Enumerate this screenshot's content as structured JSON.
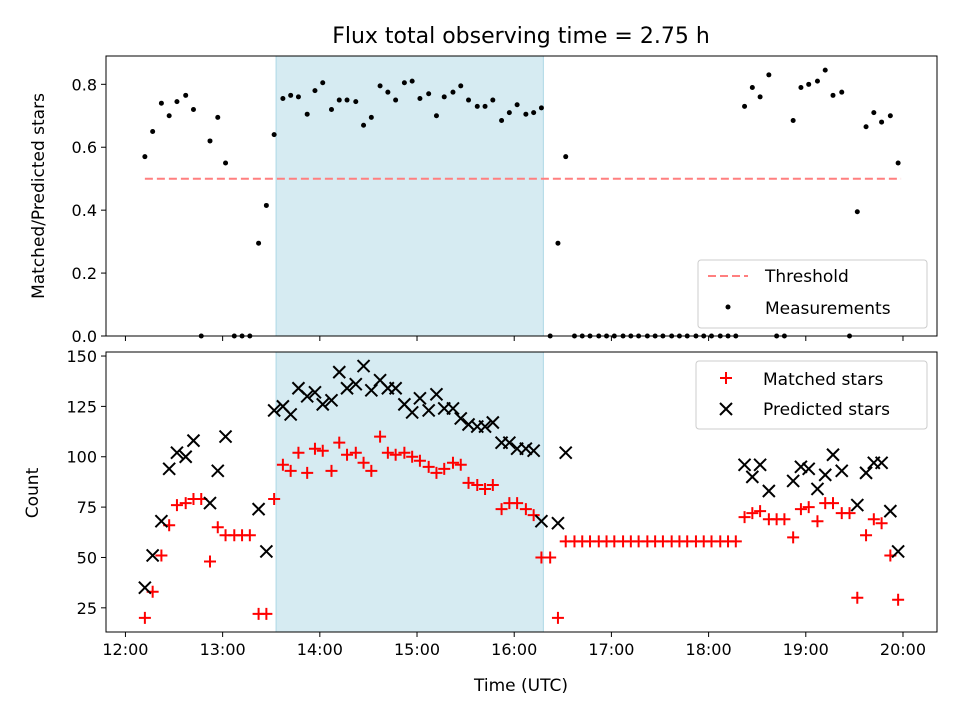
{
  "chart_data": {
    "title": "Flux total observing time = 2.75 h",
    "shared_x": {
      "label": "Time (UTC)",
      "range_hours": [
        11.8,
        20.35
      ],
      "ticks": [
        "12:00",
        "13:00",
        "14:00",
        "15:00",
        "16:00",
        "17:00",
        "18:00",
        "19:00",
        "20:00"
      ]
    },
    "observing_window_hours": [
      13.55,
      16.3
    ],
    "colors": {
      "window_fill": "#add8e6",
      "threshold": "#ff7f7f",
      "measurements": "#000000",
      "matched": "#ff0000",
      "predicted": "#000000"
    },
    "panels": [
      {
        "type": "scatter",
        "ylabel": "Matched/Predicted stars",
        "ylim": [
          0,
          0.89
        ],
        "yticks": [
          "0.0",
          "0.2",
          "0.4",
          "0.6",
          "0.8"
        ],
        "legend": {
          "placement": "lower-right",
          "entries": [
            "Threshold",
            "Measurements"
          ]
        },
        "threshold": {
          "name": "Threshold",
          "y": 0.5,
          "x_range": [
            12.2,
            19.98
          ]
        },
        "series": [
          {
            "name": "Measurements",
            "x": [
              12.2,
              12.28,
              12.37,
              12.45,
              12.53,
              12.62,
              12.7,
              12.78,
              12.87,
              12.95,
              13.03,
              13.12,
              13.2,
              13.28,
              13.37,
              13.45,
              13.53,
              13.62,
              13.7,
              13.78,
              13.87,
              13.95,
              14.03,
              14.12,
              14.2,
              14.28,
              14.37,
              14.45,
              14.53,
              14.62,
              14.7,
              14.78,
              14.87,
              14.95,
              15.03,
              15.12,
              15.2,
              15.28,
              15.37,
              15.45,
              15.53,
              15.62,
              15.7,
              15.78,
              15.87,
              15.95,
              16.03,
              16.12,
              16.2,
              16.28,
              16.37,
              16.45,
              16.53,
              16.62,
              16.7,
              16.78,
              16.87,
              16.95,
              17.03,
              17.12,
              17.2,
              17.28,
              17.37,
              17.45,
              17.53,
              17.62,
              17.7,
              17.78,
              17.87,
              17.95,
              18.03,
              18.12,
              18.2,
              18.28,
              18.37,
              18.45,
              18.53,
              18.62,
              18.7,
              18.78,
              18.87,
              18.95,
              19.03,
              19.12,
              19.2,
              19.28,
              19.37,
              19.45,
              19.53,
              19.62,
              19.7,
              19.78,
              19.87,
              19.95
            ],
            "y": [
              0.57,
              0.65,
              0.74,
              0.7,
              0.745,
              0.765,
              0.72,
              0.0,
              0.62,
              0.695,
              0.55,
              0.0,
              0.0,
              0.0,
              0.295,
              0.415,
              0.64,
              0.755,
              0.765,
              0.76,
              0.705,
              0.78,
              0.805,
              0.72,
              0.75,
              0.75,
              0.745,
              0.67,
              0.695,
              0.795,
              0.775,
              0.75,
              0.805,
              0.81,
              0.755,
              0.77,
              0.7,
              0.76,
              0.775,
              0.795,
              0.75,
              0.73,
              0.73,
              0.75,
              0.685,
              0.71,
              0.735,
              0.705,
              0.71,
              0.725,
              0.0,
              0.295,
              0.57,
              0.0,
              0.0,
              0.0,
              0.0,
              0.0,
              0.0,
              0.0,
              0.0,
              0.0,
              0.0,
              0.0,
              0.0,
              0.0,
              0.0,
              0.0,
              0.0,
              0.0,
              0.0,
              0.0,
              0.0,
              0.0,
              0.73,
              0.79,
              0.76,
              0.83,
              0.0,
              0.0,
              0.685,
              0.79,
              0.8,
              0.81,
              0.845,
              0.765,
              0.775,
              0.0,
              0.395,
              0.665,
              0.71,
              0.68,
              0.7,
              0.55
            ]
          }
        ]
      },
      {
        "type": "scatter",
        "ylabel": "Count",
        "ylim": [
          13,
          152
        ],
        "yticks": [
          "25",
          "50",
          "75",
          "100",
          "125",
          "150"
        ],
        "legend": {
          "placement": "upper-right",
          "entries": [
            "Matched stars",
            "Predicted stars"
          ]
        },
        "series": [
          {
            "name": "Matched stars",
            "x": [
              12.2,
              12.28,
              12.37,
              12.45,
              12.53,
              12.62,
              12.7,
              12.78,
              12.87,
              12.95,
              13.03,
              13.12,
              13.2,
              13.28,
              13.37,
              13.45,
              13.53,
              13.62,
              13.7,
              13.78,
              13.87,
              13.95,
              14.03,
              14.12,
              14.2,
              14.28,
              14.37,
              14.45,
              14.53,
              14.62,
              14.7,
              14.78,
              14.87,
              14.95,
              15.03,
              15.12,
              15.2,
              15.28,
              15.37,
              15.45,
              15.53,
              15.62,
              15.7,
              15.78,
              15.87,
              15.95,
              16.03,
              16.12,
              16.2,
              16.28,
              16.37,
              16.45,
              16.53,
              16.62,
              16.7,
              16.78,
              16.87,
              16.95,
              17.03,
              17.12,
              17.2,
              17.28,
              17.37,
              17.45,
              17.53,
              17.62,
              17.7,
              17.78,
              17.87,
              17.95,
              18.03,
              18.12,
              18.2,
              18.28,
              18.37,
              18.45,
              18.53,
              18.62,
              18.7,
              18.78,
              18.87,
              18.95,
              19.03,
              19.12,
              19.2,
              19.28,
              19.37,
              19.45,
              19.53,
              19.62,
              19.7,
              19.78,
              19.87,
              19.95
            ],
            "y": [
              20,
              33,
              51,
              66,
              76,
              77,
              79,
              79,
              48,
              65,
              61,
              61,
              61,
              61,
              22,
              22,
              79,
              96,
              93,
              102,
              92,
              104,
              103,
              93,
              107,
              101,
              102,
              97,
              93,
              110,
              102,
              101,
              102,
              100,
              98,
              95,
              92,
              94,
              97,
              96,
              87,
              86,
              84,
              86,
              74,
              77,
              77,
              74,
              71,
              50,
              50,
              20,
              58,
              58,
              58,
              58,
              58,
              58,
              58,
              58,
              58,
              58,
              58,
              58,
              58,
              58,
              58,
              58,
              58,
              58,
              58,
              58,
              58,
              58,
              70,
              72,
              73,
              69,
              69,
              69,
              60,
              74,
              75,
              68,
              77,
              77,
              72,
              72,
              30,
              61,
              69,
              67,
              51,
              29
            ]
          },
          {
            "name": "Predicted stars",
            "x": [
              12.2,
              12.28,
              12.37,
              12.45,
              12.53,
              12.62,
              12.7,
              12.87,
              12.95,
              13.03,
              13.37,
              13.45,
              13.53,
              13.62,
              13.7,
              13.78,
              13.87,
              13.95,
              14.03,
              14.12,
              14.2,
              14.28,
              14.37,
              14.45,
              14.53,
              14.62,
              14.7,
              14.78,
              14.87,
              14.95,
              15.03,
              15.12,
              15.2,
              15.28,
              15.37,
              15.45,
              15.53,
              15.62,
              15.7,
              15.78,
              15.87,
              15.95,
              16.03,
              16.12,
              16.2,
              16.28,
              16.45,
              16.53,
              18.37,
              18.45,
              18.53,
              18.62,
              18.87,
              18.95,
              19.03,
              19.12,
              19.2,
              19.28,
              19.37,
              19.53,
              19.62,
              19.7,
              19.78,
              19.87,
              19.95
            ],
            "y": [
              35,
              51,
              68,
              94,
              102,
              100,
              108,
              77,
              93,
              110,
              74,
              53,
              123,
              125,
              121,
              134,
              130,
              132,
              126,
              128,
              142,
              134,
              136,
              145,
              133,
              138,
              134,
              134,
              126,
              122,
              129,
              123,
              131,
              124,
              124,
              119,
              116,
              115,
              115,
              117,
              107,
              107,
              104,
              104,
              103,
              68,
              67,
              102,
              96,
              90,
              96,
              83,
              88,
              95,
              94,
              84,
              91,
              101,
              93,
              76,
              92,
              97,
              97,
              73,
              53
            ]
          }
        ]
      }
    ]
  }
}
